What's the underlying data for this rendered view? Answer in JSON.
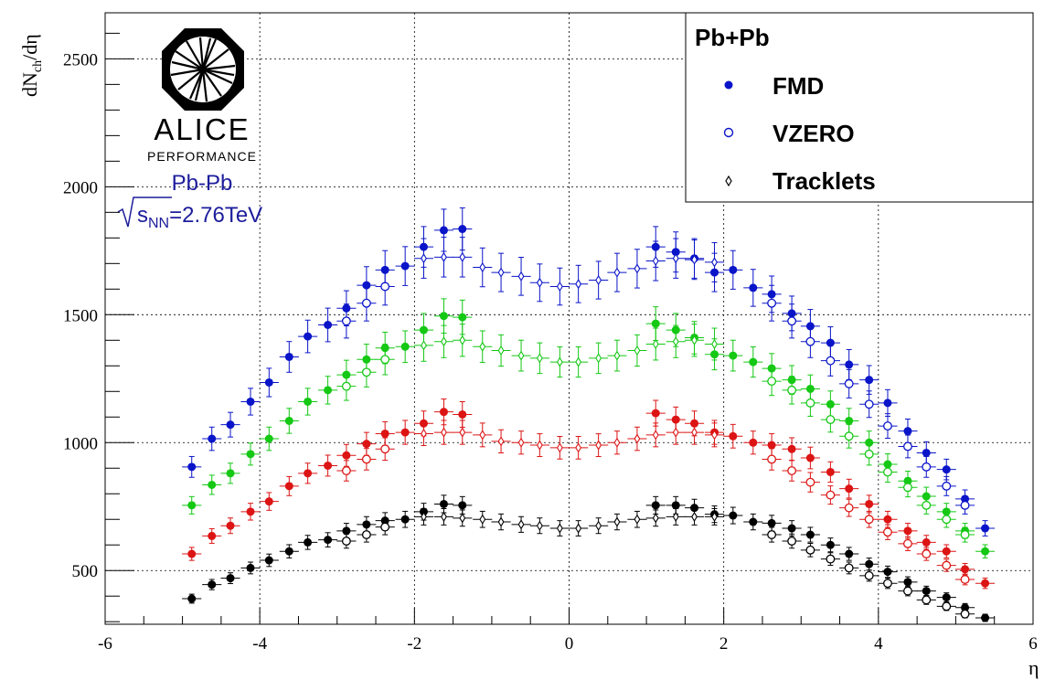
{
  "logo": {
    "name": "ALICE",
    "subtitle": "PERFORMANCE"
  },
  "annotation": {
    "system": "Pb-Pb",
    "energy_symbol": "s",
    "energy_subscript": "NN",
    "energy_value": "=2.76TeV"
  },
  "colors": {
    "blue": "#0a14c8",
    "green": "#14c814",
    "red": "#dc1414",
    "black": "#000000",
    "annotation": "#1d1d9c"
  },
  "chart_data": {
    "type": "scatter",
    "xlabel": "η",
    "ylabel": {
      "main": "dN",
      "sub": "ch",
      "tail": "/dη"
    },
    "xlim": [
      -6,
      6
    ],
    "ylim": [
      290,
      2680
    ],
    "xticks": [
      -6,
      -4,
      -2,
      0,
      2,
      4,
      6
    ],
    "xtick_labels": [
      "-6",
      "-4",
      "-2",
      "0",
      "2",
      "4",
      "6"
    ],
    "yticks": [
      500,
      1000,
      1500,
      2000,
      2500
    ],
    "ytick_labels": [
      "500",
      "1000",
      "1500",
      "2000",
      "2500"
    ],
    "grid": true,
    "legend": {
      "placement": "top-right",
      "title": "Pb+Pb",
      "entries": [
        {
          "label": "FMD",
          "marker": "filled-circle"
        },
        {
          "label": "VZERO",
          "marker": "open-circle"
        },
        {
          "label": "Tracklets",
          "marker": "open-diamond"
        }
      ]
    },
    "series": [
      {
        "color": "blue",
        "marker": "filled-circle",
        "points": [
          [
            -4.88,
            905
          ],
          [
            -4.62,
            1015
          ],
          [
            -4.38,
            1070
          ],
          [
            -4.12,
            1160
          ],
          [
            -3.88,
            1235
          ],
          [
            -3.62,
            1335
          ],
          [
            -3.38,
            1415
          ],
          [
            -3.12,
            1460
          ],
          [
            -2.88,
            1525
          ],
          [
            -2.62,
            1615
          ],
          [
            -2.38,
            1675
          ],
          [
            -2.12,
            1690
          ],
          [
            -1.88,
            1765
          ],
          [
            -1.62,
            1830
          ],
          [
            -1.38,
            1835
          ],
          [
            1.12,
            1765
          ],
          [
            1.38,
            1745
          ],
          [
            1.62,
            1720
          ],
          [
            1.88,
            1665
          ],
          [
            2.12,
            1675
          ],
          [
            2.38,
            1605
          ],
          [
            2.62,
            1580
          ],
          [
            2.88,
            1505
          ],
          [
            3.12,
            1455
          ],
          [
            3.38,
            1390
          ],
          [
            3.62,
            1305
          ],
          [
            3.88,
            1245
          ],
          [
            4.12,
            1155
          ],
          [
            4.38,
            1045
          ],
          [
            4.62,
            960
          ],
          [
            4.88,
            895
          ],
          [
            5.12,
            780
          ],
          [
            5.38,
            665
          ]
        ]
      },
      {
        "color": "blue",
        "marker": "open-circle",
        "points": [
          [
            -2.88,
            1475
          ],
          [
            -2.62,
            1545
          ],
          [
            -2.38,
            1610
          ],
          [
            2.62,
            1545
          ],
          [
            2.88,
            1475
          ],
          [
            3.12,
            1395
          ],
          [
            3.38,
            1320
          ],
          [
            3.62,
            1230
          ],
          [
            3.88,
            1150
          ],
          [
            4.12,
            1065
          ],
          [
            4.38,
            985
          ],
          [
            4.62,
            905
          ],
          [
            4.88,
            830
          ],
          [
            5.12,
            755
          ]
        ]
      },
      {
        "color": "blue",
        "marker": "open-diamond",
        "points": [
          [
            -1.88,
            1720
          ],
          [
            -1.62,
            1725
          ],
          [
            -1.38,
            1725
          ],
          [
            -1.12,
            1685
          ],
          [
            -0.88,
            1665
          ],
          [
            -0.62,
            1650
          ],
          [
            -0.38,
            1625
          ],
          [
            -0.12,
            1610
          ],
          [
            0.12,
            1620
          ],
          [
            0.38,
            1635
          ],
          [
            0.62,
            1665
          ],
          [
            0.88,
            1680
          ],
          [
            1.12,
            1710
          ],
          [
            1.38,
            1720
          ],
          [
            1.62,
            1715
          ],
          [
            1.88,
            1705
          ]
        ]
      },
      {
        "color": "green",
        "marker": "filled-circle",
        "points": [
          [
            -4.88,
            755
          ],
          [
            -4.62,
            835
          ],
          [
            -4.38,
            880
          ],
          [
            -4.12,
            955
          ],
          [
            -3.88,
            1015
          ],
          [
            -3.62,
            1085
          ],
          [
            -3.38,
            1160
          ],
          [
            -3.12,
            1205
          ],
          [
            -2.88,
            1265
          ],
          [
            -2.62,
            1325
          ],
          [
            -2.38,
            1370
          ],
          [
            -2.12,
            1375
          ],
          [
            -1.88,
            1440
          ],
          [
            -1.62,
            1495
          ],
          [
            -1.38,
            1490
          ],
          [
            1.12,
            1465
          ],
          [
            1.38,
            1440
          ],
          [
            1.62,
            1410
          ],
          [
            1.88,
            1345
          ],
          [
            2.12,
            1340
          ],
          [
            2.38,
            1315
          ],
          [
            2.62,
            1290
          ],
          [
            2.88,
            1245
          ],
          [
            3.12,
            1210
          ],
          [
            3.38,
            1150
          ],
          [
            3.62,
            1085
          ],
          [
            3.88,
            1000
          ],
          [
            4.12,
            915
          ],
          [
            4.38,
            850
          ],
          [
            4.62,
            790
          ],
          [
            4.88,
            730
          ],
          [
            5.12,
            655
          ],
          [
            5.38,
            575
          ]
        ]
      },
      {
        "color": "green",
        "marker": "open-circle",
        "points": [
          [
            -2.88,
            1220
          ],
          [
            -2.62,
            1275
          ],
          [
            -2.38,
            1325
          ],
          [
            2.62,
            1240
          ],
          [
            2.88,
            1205
          ],
          [
            3.12,
            1155
          ],
          [
            3.38,
            1090
          ],
          [
            3.62,
            1025
          ],
          [
            3.88,
            955
          ],
          [
            4.12,
            885
          ],
          [
            4.38,
            825
          ],
          [
            4.62,
            755
          ],
          [
            4.88,
            700
          ],
          [
            5.12,
            640
          ]
        ]
      },
      {
        "color": "green",
        "marker": "open-diamond",
        "points": [
          [
            -1.88,
            1380
          ],
          [
            -1.62,
            1395
          ],
          [
            -1.38,
            1400
          ],
          [
            -1.12,
            1375
          ],
          [
            -0.88,
            1360
          ],
          [
            -0.62,
            1340
          ],
          [
            -0.38,
            1330
          ],
          [
            -0.12,
            1315
          ],
          [
            0.12,
            1315
          ],
          [
            0.38,
            1330
          ],
          [
            0.62,
            1340
          ],
          [
            0.88,
            1360
          ],
          [
            1.12,
            1385
          ],
          [
            1.38,
            1395
          ],
          [
            1.62,
            1400
          ],
          [
            1.88,
            1385
          ]
        ]
      },
      {
        "color": "red",
        "marker": "filled-circle",
        "points": [
          [
            -4.88,
            565
          ],
          [
            -4.62,
            635
          ],
          [
            -4.38,
            675
          ],
          [
            -4.12,
            730
          ],
          [
            -3.88,
            770
          ],
          [
            -3.62,
            830
          ],
          [
            -3.38,
            880
          ],
          [
            -3.12,
            910
          ],
          [
            -2.88,
            950
          ],
          [
            -2.62,
            995
          ],
          [
            -2.38,
            1035
          ],
          [
            -2.12,
            1040
          ],
          [
            -1.88,
            1075
          ],
          [
            -1.62,
            1120
          ],
          [
            -1.38,
            1110
          ],
          [
            1.12,
            1115
          ],
          [
            1.38,
            1090
          ],
          [
            1.62,
            1075
          ],
          [
            1.88,
            1040
          ],
          [
            2.12,
            1025
          ],
          [
            2.38,
            1000
          ],
          [
            2.62,
            990
          ],
          [
            2.88,
            975
          ],
          [
            3.12,
            940
          ],
          [
            3.38,
            885
          ],
          [
            3.62,
            820
          ],
          [
            3.88,
            760
          ],
          [
            4.12,
            700
          ],
          [
            4.38,
            655
          ],
          [
            4.62,
            610
          ],
          [
            4.88,
            575
          ],
          [
            5.12,
            505
          ],
          [
            5.38,
            450
          ]
        ]
      },
      {
        "color": "red",
        "marker": "open-circle",
        "points": [
          [
            -2.88,
            890
          ],
          [
            -2.62,
            935
          ],
          [
            -2.38,
            975
          ],
          [
            2.62,
            935
          ],
          [
            2.88,
            890
          ],
          [
            3.12,
            845
          ],
          [
            3.38,
            795
          ],
          [
            3.62,
            745
          ],
          [
            3.88,
            700
          ],
          [
            4.12,
            650
          ],
          [
            4.38,
            605
          ],
          [
            4.62,
            565
          ],
          [
            4.88,
            520
          ],
          [
            5.12,
            465
          ]
        ]
      },
      {
        "color": "red",
        "marker": "open-diamond",
        "points": [
          [
            -1.88,
            1035
          ],
          [
            -1.62,
            1040
          ],
          [
            -1.38,
            1040
          ],
          [
            -1.12,
            1030
          ],
          [
            -0.88,
            1005
          ],
          [
            -0.62,
            1000
          ],
          [
            -0.38,
            990
          ],
          [
            -0.12,
            980
          ],
          [
            0.12,
            980
          ],
          [
            0.38,
            990
          ],
          [
            0.62,
            1000
          ],
          [
            0.88,
            1015
          ],
          [
            1.12,
            1030
          ],
          [
            1.38,
            1040
          ],
          [
            1.62,
            1040
          ],
          [
            1.88,
            1030
          ]
        ]
      },
      {
        "color": "black",
        "marker": "filled-circle",
        "points": [
          [
            -4.88,
            390
          ],
          [
            -4.62,
            445
          ],
          [
            -4.38,
            470
          ],
          [
            -4.12,
            510
          ],
          [
            -3.88,
            540
          ],
          [
            -3.62,
            575
          ],
          [
            -3.38,
            610
          ],
          [
            -3.12,
            620
          ],
          [
            -2.88,
            655
          ],
          [
            -2.62,
            680
          ],
          [
            -2.38,
            695
          ],
          [
            -2.12,
            700
          ],
          [
            -1.88,
            730
          ],
          [
            -1.62,
            760
          ],
          [
            -1.38,
            755
          ],
          [
            1.12,
            755
          ],
          [
            1.38,
            755
          ],
          [
            1.62,
            745
          ],
          [
            1.88,
            720
          ],
          [
            2.12,
            715
          ],
          [
            2.38,
            690
          ],
          [
            2.62,
            685
          ],
          [
            2.88,
            665
          ],
          [
            3.12,
            640
          ],
          [
            3.38,
            600
          ],
          [
            3.62,
            565
          ],
          [
            3.88,
            525
          ],
          [
            4.12,
            495
          ],
          [
            4.38,
            455
          ],
          [
            4.62,
            420
          ],
          [
            4.88,
            395
          ],
          [
            5.12,
            355
          ],
          [
            5.38,
            315
          ]
        ]
      },
      {
        "color": "black",
        "marker": "open-circle",
        "points": [
          [
            -2.88,
            615
          ],
          [
            -2.62,
            640
          ],
          [
            -2.38,
            670
          ],
          [
            2.62,
            640
          ],
          [
            2.88,
            615
          ],
          [
            3.12,
            580
          ],
          [
            3.38,
            545
          ],
          [
            3.62,
            510
          ],
          [
            3.88,
            480
          ],
          [
            4.12,
            450
          ],
          [
            4.38,
            420
          ],
          [
            4.62,
            385
          ],
          [
            4.88,
            360
          ],
          [
            5.12,
            330
          ]
        ]
      },
      {
        "color": "black",
        "marker": "open-diamond",
        "points": [
          [
            -1.88,
            710
          ],
          [
            -1.62,
            710
          ],
          [
            -1.38,
            705
          ],
          [
            -1.12,
            700
          ],
          [
            -0.88,
            690
          ],
          [
            -0.62,
            680
          ],
          [
            -0.38,
            675
          ],
          [
            -0.12,
            665
          ],
          [
            0.12,
            665
          ],
          [
            0.38,
            675
          ],
          [
            0.62,
            690
          ],
          [
            0.88,
            700
          ],
          [
            1.12,
            705
          ],
          [
            1.38,
            710
          ],
          [
            1.62,
            710
          ],
          [
            1.88,
            710
          ]
        ]
      }
    ]
  }
}
